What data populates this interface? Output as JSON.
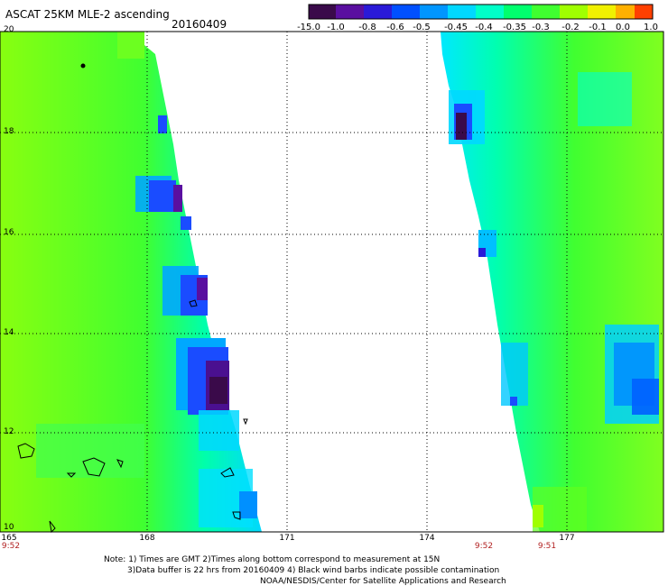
{
  "header": {
    "title": "ASCAT 25KM MLE-2 ascending",
    "date": "20160409"
  },
  "colorbar": {
    "labels": [
      "-15.0",
      "-1.0",
      "-0.8",
      "-0.6",
      "-0.5",
      "-0.45",
      "-0.4",
      "-0.35",
      "-0.3",
      "-0.2",
      "-0.1",
      "0.0",
      "1.0"
    ],
    "colors": [
      "#3a0a4a",
      "#5a0fa0",
      "#2a1ad8",
      "#0050ff",
      "#0096ff",
      "#00d8ff",
      "#00ffc8",
      "#00ff6e",
      "#40ff30",
      "#a0ff00",
      "#f0f000",
      "#ffb000",
      "#ff4000"
    ]
  },
  "axes": {
    "y_ticks": [
      "20",
      "18",
      "16",
      "14",
      "12",
      "10"
    ],
    "x_ticks": [
      "165",
      "168",
      "171",
      "174",
      "177"
    ],
    "time_labels": [
      "9:52",
      "9:52",
      "9:51"
    ]
  },
  "notes": {
    "line1": "Note: 1) Times are GMT 2)Times along bottom correspond to measurement at 15N",
    "line2": "3)Data buffer is 22 hrs from 20160409 4) Black wind barbs indicate possible contamination",
    "line3": "NOAA/NESDIS/Center for Satellite Applications and Research"
  },
  "map": {
    "lat_range": [
      10,
      20
    ],
    "lon_range": [
      165,
      179.5
    ],
    "swaths": [
      "left swath",
      "right swath"
    ],
    "land_features": [
      "islands"
    ]
  }
}
